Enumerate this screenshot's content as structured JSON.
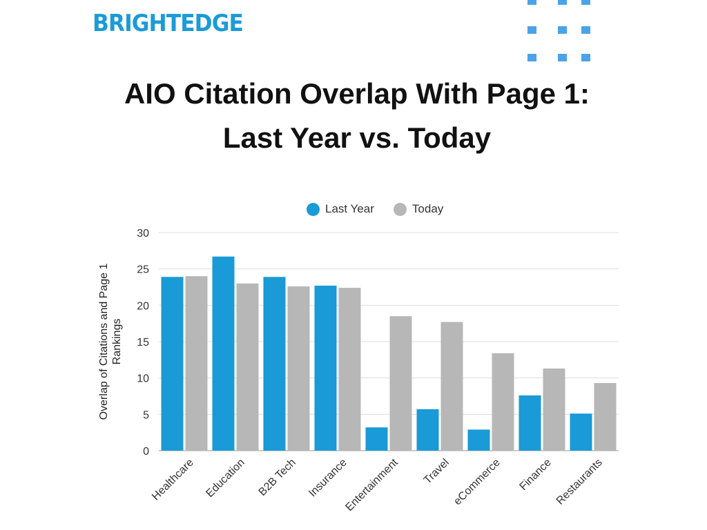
{
  "brand": {
    "logo_text": "BRIGHTEDGE",
    "color": "#1b9bd7",
    "dot_color": "#4aa3e8"
  },
  "chart_data": {
    "type": "bar",
    "title": "AIO Citation Overlap With Page 1: Last Year vs. Today",
    "title_lines": [
      "AIO Citation Overlap With Page 1:",
      "Last Year vs. Today"
    ],
    "xlabel": "",
    "ylabel": "Overlap of Citations and Page 1 Rankings",
    "ylabel_lines": [
      "Overlap of Citations and Page 1",
      "Rankings"
    ],
    "ylim": [
      0,
      30
    ],
    "yticks": [
      0,
      5,
      10,
      15,
      20,
      25,
      30
    ],
    "grid": true,
    "legend_position": "top",
    "categories": [
      "Healthcare",
      "Education",
      "B2B Tech",
      "Insurance",
      "Entertainment",
      "Travel",
      "eCommerce",
      "Finance",
      "Restaurants"
    ],
    "series": [
      {
        "name": "Last Year",
        "color": "#1a9ad6",
        "values": [
          23.9,
          26.7,
          23.9,
          22.7,
          3.2,
          5.7,
          2.9,
          7.6,
          5.1
        ]
      },
      {
        "name": "Today",
        "color": "#b7b7b7",
        "values": [
          24.0,
          23.0,
          22.6,
          22.4,
          18.5,
          17.7,
          13.4,
          11.3,
          9.3
        ]
      }
    ]
  }
}
